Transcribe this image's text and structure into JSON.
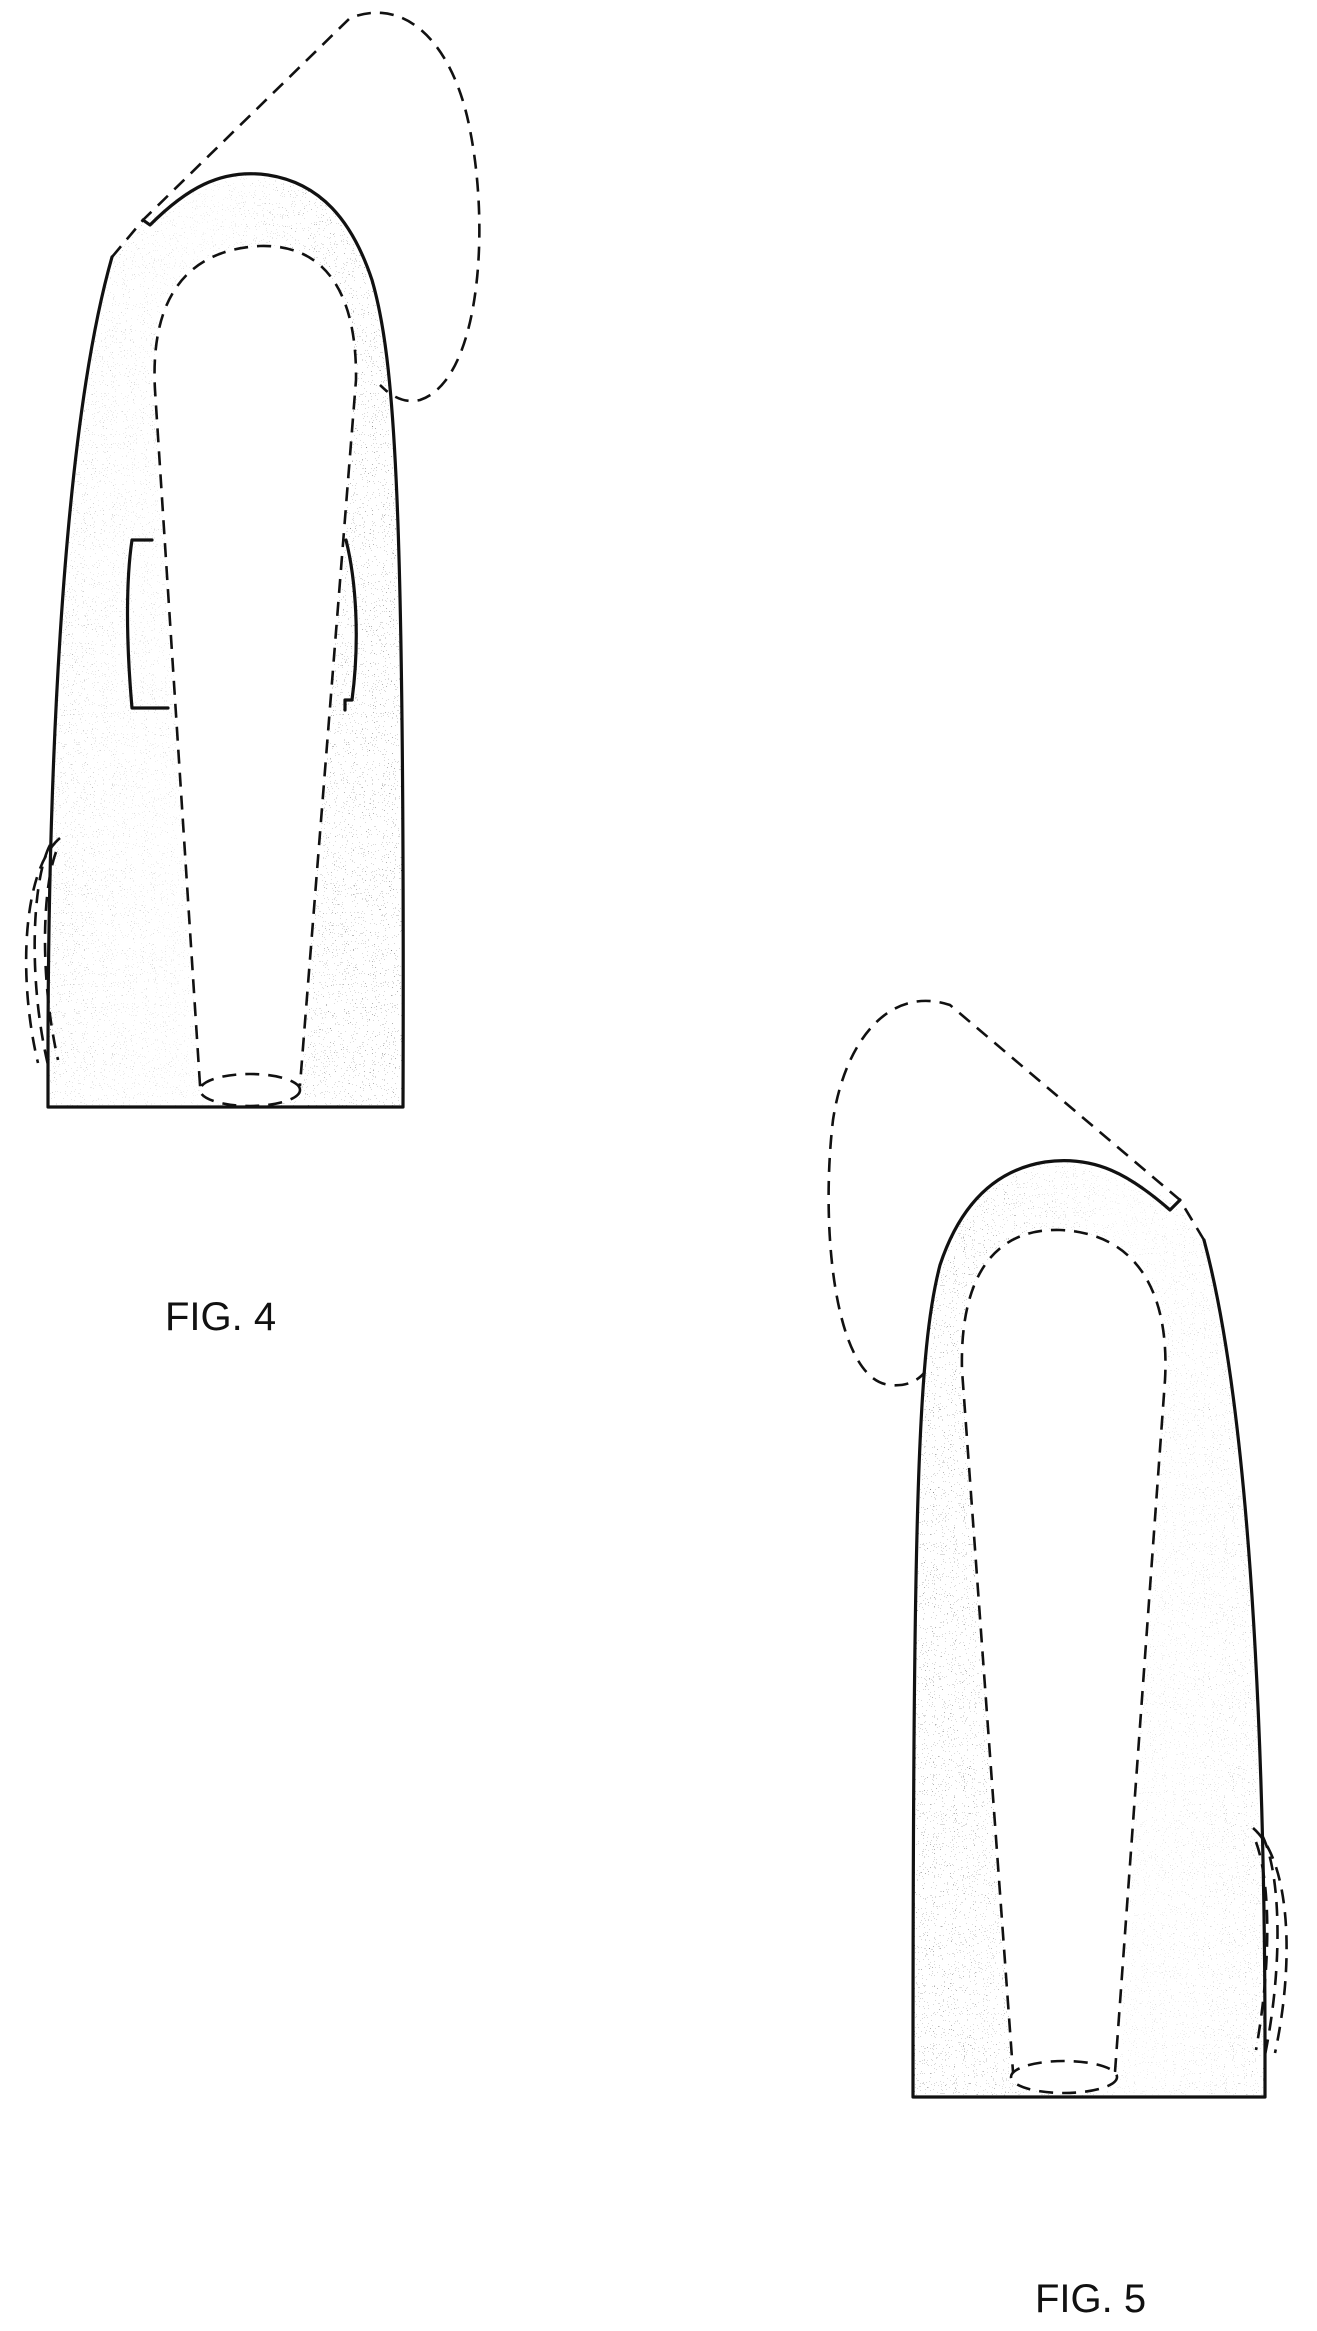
{
  "figures": [
    {
      "label": "FIG. 4"
    },
    {
      "label": "FIG. 5"
    }
  ]
}
